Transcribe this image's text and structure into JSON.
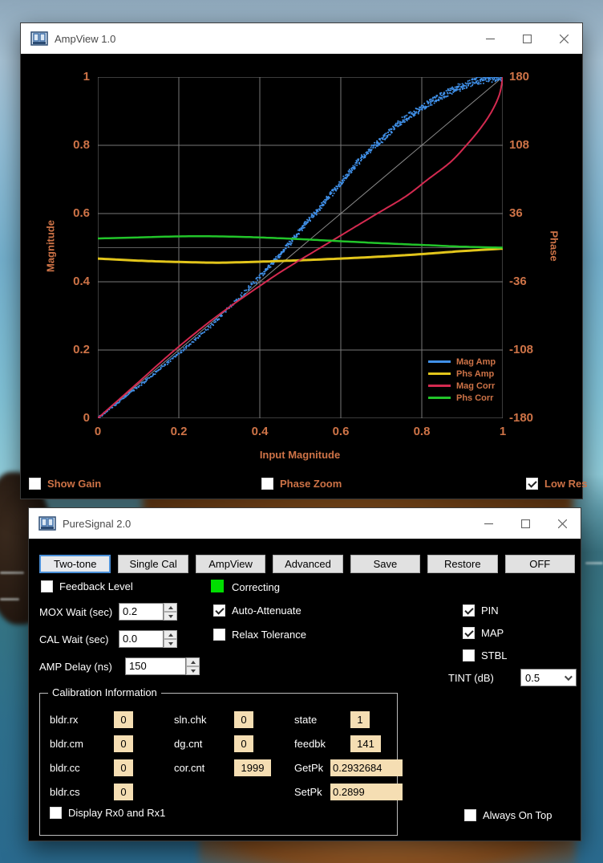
{
  "ampview": {
    "title": "AmpView 1.0",
    "footer": {
      "show_gain": {
        "label": "Show Gain",
        "checked": false
      },
      "phase_zoom": {
        "label": "Phase Zoom",
        "checked": false
      },
      "low_res": {
        "label": "Low Res",
        "checked": true
      }
    }
  },
  "chart_data": {
    "type": "line",
    "title": "",
    "xlabel": "Input Magnitude",
    "ylabel_left": "Magnitude",
    "ylabel_right": "Phase",
    "xlim": [
      0,
      1
    ],
    "ylim_left": [
      0,
      1
    ],
    "ylim_right": [
      -180,
      180
    ],
    "xticks": [
      "0",
      "0.2",
      "0.4",
      "0.6",
      "0.8",
      "1"
    ],
    "yticks_left": [
      "1",
      "0.8",
      "0.6",
      "0.4",
      "0.2",
      "0"
    ],
    "yticks_right": [
      "180",
      "108",
      "36",
      "-36",
      "-108",
      "-180"
    ],
    "grid": true,
    "legend_position": "bottom-right",
    "reference_lines": {
      "identity_diagonal": true,
      "zero_phase_midline": true
    },
    "series": [
      {
        "name": "Mag Amp",
        "color": "#4090e8",
        "axis": "left",
        "style": "scatter",
        "points": [
          [
            0,
            0
          ],
          [
            0.1,
            0.093
          ],
          [
            0.2,
            0.19
          ],
          [
            0.3,
            0.295
          ],
          [
            0.4,
            0.415
          ],
          [
            0.45,
            0.48
          ],
          [
            0.5,
            0.55
          ],
          [
            0.55,
            0.62
          ],
          [
            0.6,
            0.69
          ],
          [
            0.65,
            0.76
          ],
          [
            0.7,
            0.815
          ],
          [
            0.75,
            0.87
          ],
          [
            0.8,
            0.91
          ],
          [
            0.85,
            0.945
          ],
          [
            0.9,
            0.973
          ],
          [
            0.95,
            0.992
          ],
          [
            1,
            1
          ]
        ]
      },
      {
        "name": "Phs Amp",
        "color": "#e2c51b",
        "axis": "right",
        "style": "line",
        "width": 3,
        "points_deg": [
          [
            0,
            -11.5
          ],
          [
            0.1,
            -13.7
          ],
          [
            0.2,
            -15.1
          ],
          [
            0.3,
            -15.8
          ],
          [
            0.4,
            -14.8
          ],
          [
            0.5,
            -13.3
          ],
          [
            0.6,
            -11.5
          ],
          [
            0.7,
            -9.4
          ],
          [
            0.8,
            -6.8
          ],
          [
            0.9,
            -3.6
          ],
          [
            1,
            -1
          ]
        ]
      },
      {
        "name": "Mag Corr",
        "color": "#d42a50",
        "axis": "left",
        "style": "line",
        "width": 2,
        "points": [
          [
            0,
            0
          ],
          [
            0.095,
            0.1
          ],
          [
            0.19,
            0.2
          ],
          [
            0.295,
            0.3
          ],
          [
            0.415,
            0.4
          ],
          [
            0.48,
            0.45
          ],
          [
            0.55,
            0.5
          ],
          [
            0.62,
            0.55
          ],
          [
            0.69,
            0.6
          ],
          [
            0.76,
            0.65
          ],
          [
            0.815,
            0.7
          ],
          [
            0.87,
            0.75
          ],
          [
            0.91,
            0.8
          ],
          [
            0.945,
            0.85
          ],
          [
            0.973,
            0.9
          ],
          [
            0.992,
            0.95
          ],
          [
            1,
            1
          ]
        ]
      },
      {
        "name": "Phs Corr",
        "color": "#22c52a",
        "axis": "right",
        "style": "line",
        "width": 2.5,
        "points_deg": [
          [
            0,
            9.7
          ],
          [
            0.1,
            10.8
          ],
          [
            0.2,
            11.9
          ],
          [
            0.3,
            11.9
          ],
          [
            0.4,
            10.8
          ],
          [
            0.5,
            9
          ],
          [
            0.6,
            6.8
          ],
          [
            0.7,
            4.7
          ],
          [
            0.8,
            2.9
          ],
          [
            0.9,
            1.1
          ],
          [
            1,
            0
          ]
        ]
      }
    ]
  },
  "puresignal": {
    "title": "PureSignal 2.0",
    "toolbar": [
      {
        "label": "Two-tone",
        "active": true
      },
      {
        "label": "Single Cal",
        "active": false
      },
      {
        "label": "AmpView",
        "active": false
      },
      {
        "label": "Advanced",
        "active": false
      },
      {
        "label": "Save",
        "active": false
      },
      {
        "label": "Restore",
        "active": false
      },
      {
        "label": "OFF",
        "active": false
      }
    ],
    "feedback_level": {
      "label": "Feedback Level",
      "checked": false
    },
    "correcting": {
      "label": "Correcting",
      "on": true,
      "color": "#00dd00"
    },
    "mox_wait": {
      "label": "MOX Wait (sec)",
      "value": "0.2"
    },
    "cal_wait": {
      "label": "CAL Wait (sec)",
      "value": "0.0"
    },
    "amp_delay": {
      "label": "AMP Delay (ns)",
      "value": "150"
    },
    "auto_attenuate": {
      "label": "Auto-Attenuate",
      "checked": true
    },
    "relax_tolerance": {
      "label": "Relax Tolerance",
      "checked": false
    },
    "pin": {
      "label": "PIN",
      "checked": true
    },
    "map": {
      "label": "MAP",
      "checked": true
    },
    "stbl": {
      "label": "STBL",
      "checked": false
    },
    "tint": {
      "label": "TINT (dB)",
      "value": "0.5"
    },
    "calibration": {
      "title": "Calibration Information",
      "fields": [
        {
          "label": "bldr.rx",
          "value": "0"
        },
        {
          "label": "bldr.cm",
          "value": "0"
        },
        {
          "label": "bldr.cc",
          "value": "0"
        },
        {
          "label": "bldr.cs",
          "value": "0"
        },
        {
          "label": "sln.chk",
          "value": "0"
        },
        {
          "label": "dg.cnt",
          "value": "0"
        },
        {
          "label": "cor.cnt",
          "value": "1999"
        },
        {
          "label": "state",
          "value": "1"
        },
        {
          "label": "feedbk",
          "value": "141"
        },
        {
          "label": "GetPk",
          "value": "0.2932684"
        },
        {
          "label": "SetPk",
          "value": "0.2899"
        }
      ],
      "display_rx": {
        "label": "Display Rx0 and Rx1",
        "checked": false
      }
    },
    "always_on_top": {
      "label": "Always On Top",
      "checked": false
    }
  },
  "colors": {
    "chart_text": "#ce7347",
    "grid": "#787878",
    "value_field_bg": "#f5deb3",
    "accent_button_border": "#4a90d9"
  }
}
